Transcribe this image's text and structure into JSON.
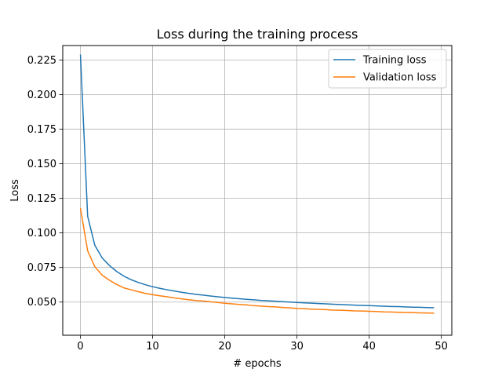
{
  "chart_data": {
    "type": "line",
    "title": "Loss during the training process",
    "xlabel": "# epochs",
    "ylabel": "Loss",
    "xlim": [
      -2.45,
      51.45
    ],
    "ylim": [
      0.026,
      0.2355
    ],
    "xticks": [
      0,
      10,
      20,
      30,
      40,
      50
    ],
    "xtick_labels": [
      "0",
      "10",
      "20",
      "30",
      "40",
      "50"
    ],
    "yticks": [
      0.05,
      0.075,
      0.1,
      0.125,
      0.15,
      0.175,
      0.2,
      0.225
    ],
    "ytick_labels": [
      "0.050",
      "0.075",
      "0.100",
      "0.125",
      "0.150",
      "0.175",
      "0.200",
      "0.225"
    ],
    "grid": true,
    "legend_position": "top-right",
    "x": [
      0,
      1,
      2,
      3,
      4,
      5,
      6,
      7,
      8,
      9,
      10,
      11,
      12,
      13,
      14,
      15,
      16,
      17,
      18,
      19,
      20,
      21,
      22,
      23,
      24,
      25,
      26,
      27,
      28,
      29,
      30,
      31,
      32,
      33,
      34,
      35,
      36,
      37,
      38,
      39,
      40,
      41,
      42,
      43,
      44,
      45,
      46,
      47,
      48,
      49
    ],
    "series": [
      {
        "name": "Training loss",
        "color": "#1f77b4",
        "values": [
          0.229,
          0.112,
          0.091,
          0.082,
          0.0765,
          0.0722,
          0.0688,
          0.0662,
          0.0642,
          0.0625,
          0.0611,
          0.0599,
          0.0589,
          0.058,
          0.0571,
          0.0563,
          0.0556,
          0.055,
          0.0544,
          0.0538,
          0.0533,
          0.0528,
          0.0524,
          0.052,
          0.0516,
          0.0512,
          0.0509,
          0.0506,
          0.0503,
          0.05,
          0.0497,
          0.0494,
          0.0492,
          0.0489,
          0.0487,
          0.0484,
          0.0482,
          0.048,
          0.0478,
          0.0476,
          0.0474,
          0.0472,
          0.047,
          0.0468,
          0.0467,
          0.0465,
          0.0463,
          0.0462,
          0.046,
          0.0459
        ]
      },
      {
        "name": "Validation loss",
        "color": "#ff7f0e",
        "values": [
          0.118,
          0.087,
          0.0755,
          0.0695,
          0.0658,
          0.0628,
          0.0603,
          0.0589,
          0.0575,
          0.0563,
          0.0553,
          0.0545,
          0.0538,
          0.053,
          0.0523,
          0.0517,
          0.0511,
          0.0508,
          0.0502,
          0.0497,
          0.0491,
          0.0487,
          0.0483,
          0.0479,
          0.0474,
          0.0471,
          0.0467,
          0.0465,
          0.0461,
          0.0458,
          0.0454,
          0.0452,
          0.0449,
          0.0447,
          0.0445,
          0.0442,
          0.0441,
          0.0439,
          0.0436,
          0.0435,
          0.0433,
          0.0432,
          0.0429,
          0.0428,
          0.0426,
          0.0425,
          0.0424,
          0.0422,
          0.0421,
          0.042
        ]
      }
    ]
  }
}
